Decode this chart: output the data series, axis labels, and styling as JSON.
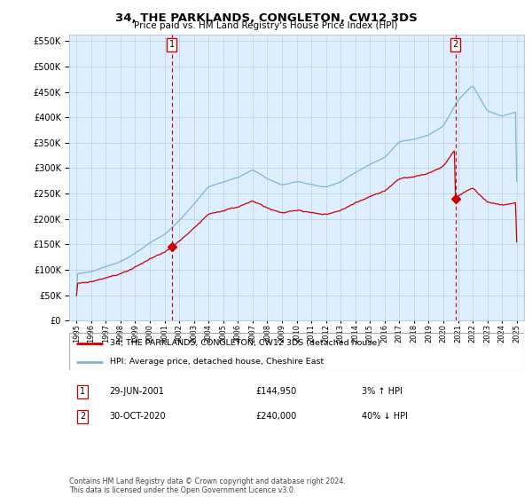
{
  "title": "34, THE PARKLANDS, CONGLETON, CW12 3DS",
  "subtitle": "Price paid vs. HM Land Registry's House Price Index (HPI)",
  "legend_line1": "34, THE PARKLANDS, CONGLETON, CW12 3DS (detached house)",
  "legend_line2": "HPI: Average price, detached house, Cheshire East",
  "annotation1_num": "1",
  "annotation1_date": "29-JUN-2001",
  "annotation1_price": "£144,950",
  "annotation1_hpi": "3% ↑ HPI",
  "annotation2_num": "2",
  "annotation2_date": "30-OCT-2020",
  "annotation2_price": "£240,000",
  "annotation2_hpi": "40% ↓ HPI",
  "footer": "Contains HM Land Registry data © Crown copyright and database right 2024.\nThis data is licensed under the Open Government Licence v3.0.",
  "sale1_year": 2001.5,
  "sale1_price": 144950,
  "sale2_year": 2020.83,
  "sale2_price": 240000,
  "hpi_color": "#7eb5d6",
  "property_color": "#cc0000",
  "vline_color": "#cc0000",
  "background_color": "#ffffff",
  "plot_bg_color": "#ddeeff",
  "grid_color": "#bbccdd",
  "ylim_min": 0,
  "ylim_max": 562500,
  "xlim_min": 1994.5,
  "xlim_max": 2025.5
}
